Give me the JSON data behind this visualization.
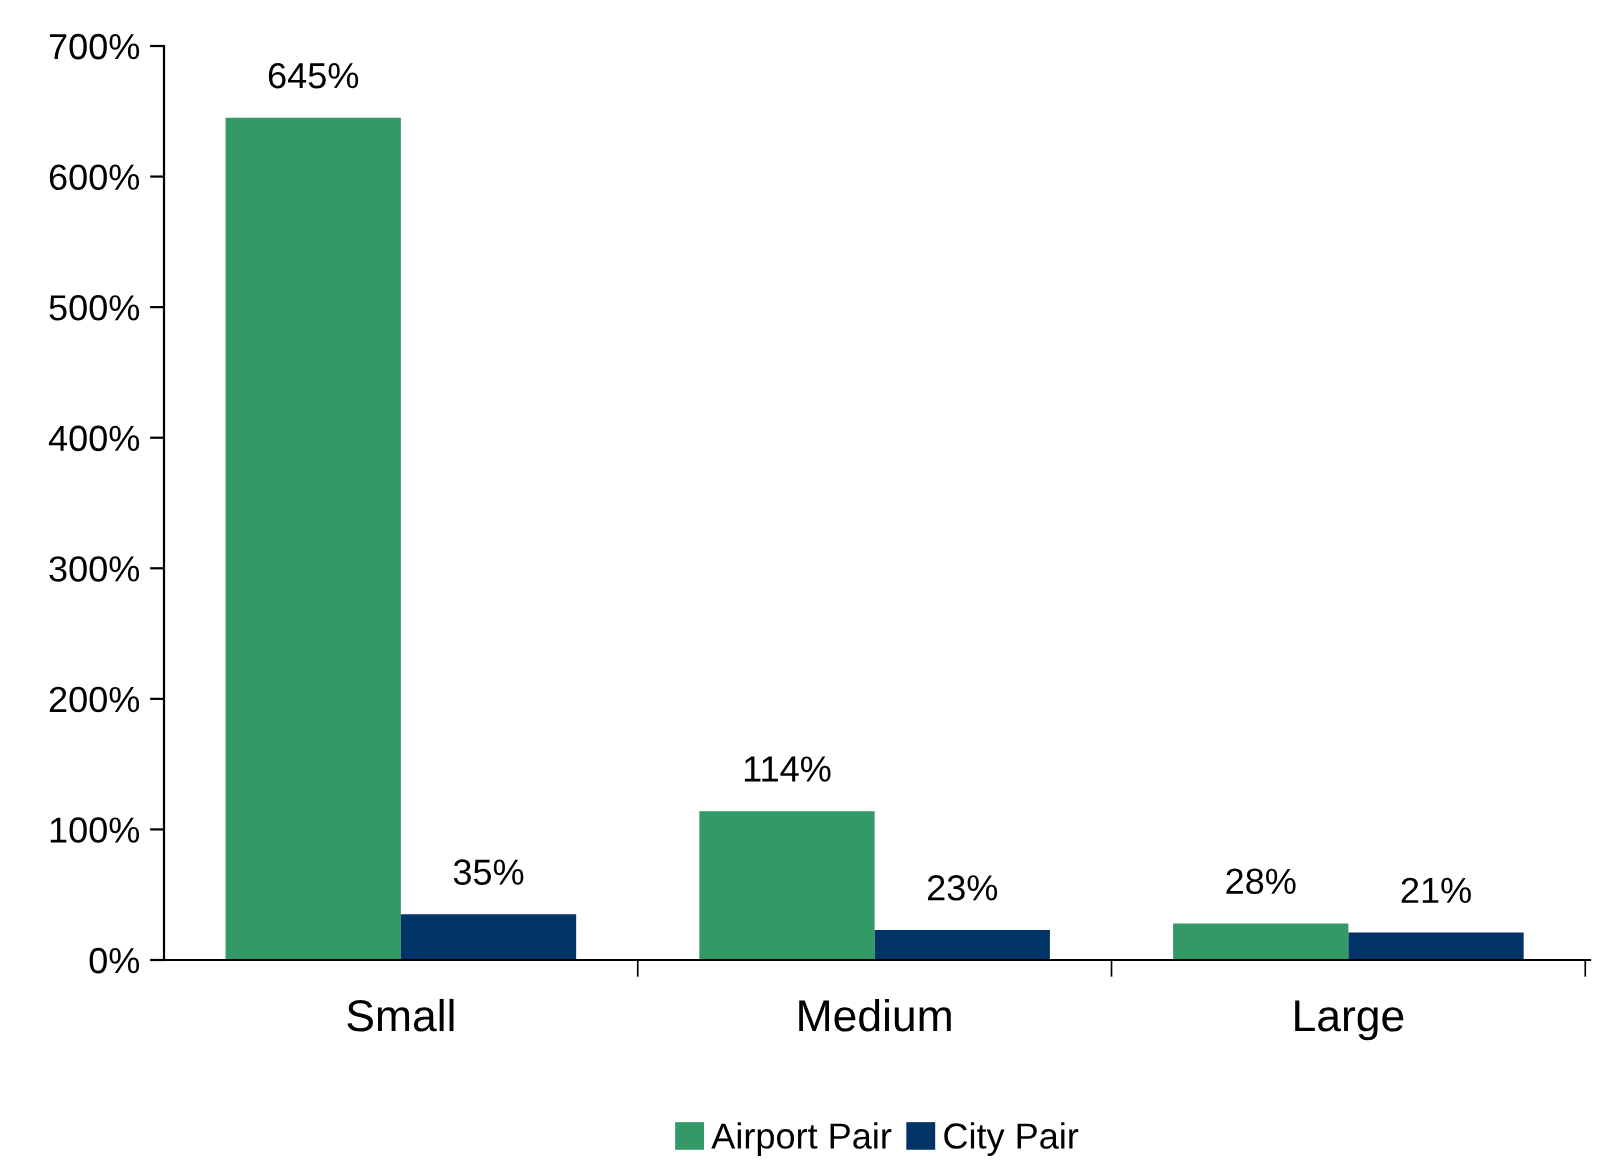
{
  "chart_data": {
    "type": "bar",
    "categories": [
      "Small",
      "Medium",
      "Large"
    ],
    "series": [
      {
        "name": "Airport Pair",
        "color": "#339966",
        "values": [
          645,
          114,
          28
        ]
      },
      {
        "name": "City Pair",
        "color": "#003366",
        "values": [
          35,
          23,
          21
        ]
      }
    ],
    "ylim": [
      0,
      700
    ],
    "yticks": [
      {
        "value": 0,
        "label": "0%"
      },
      {
        "value": 100,
        "label": "100%"
      },
      {
        "value": 200,
        "label": "200%"
      },
      {
        "value": 300,
        "label": "300%"
      },
      {
        "value": 400,
        "label": "400%"
      },
      {
        "value": 500,
        "label": "500%"
      },
      {
        "value": 600,
        "label": "600%"
      },
      {
        "value": 700,
        "label": "700%"
      }
    ],
    "value_labels": [
      [
        "645%",
        "114%",
        "28%"
      ],
      [
        "35%",
        "23%",
        "21%"
      ]
    ],
    "grid": false,
    "legend": "bottom"
  }
}
